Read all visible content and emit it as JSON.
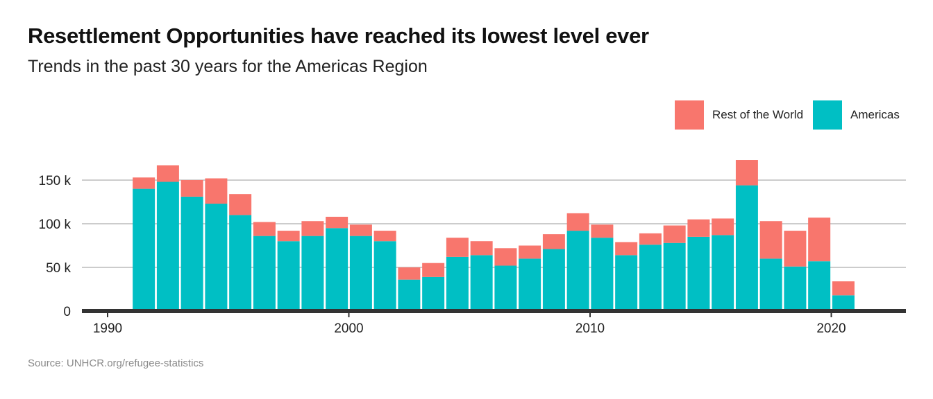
{
  "header": {
    "title": "Resettlement Opportunities have reached its lowest level ever",
    "subtitle": "Trends in the past 30 years for the Americas Region"
  },
  "footer": {
    "source": "Source: UNHCR.org/refugee-statistics"
  },
  "colors": {
    "rest_of_world": "#f8766d",
    "americas": "#00bfc4",
    "grid": "#cccccc",
    "axis": "#333333"
  },
  "chart_data": {
    "type": "bar",
    "stacked": true,
    "x": [
      1991,
      1992,
      1993,
      1994,
      1995,
      1996,
      1997,
      1998,
      1999,
      2000,
      2001,
      2002,
      2003,
      2004,
      2005,
      2006,
      2007,
      2008,
      2009,
      2010,
      2011,
      2012,
      2013,
      2014,
      2015,
      2016,
      2017,
      2018,
      2019,
      2020
    ],
    "series": [
      {
        "name": "Americas",
        "color": "#00bfc4",
        "values": [
          140000,
          148000,
          131000,
          123000,
          110000,
          86000,
          80000,
          86000,
          95000,
          86000,
          80000,
          36000,
          39000,
          62000,
          64000,
          52000,
          60000,
          71000,
          92000,
          84000,
          64000,
          76000,
          78000,
          85000,
          87000,
          144000,
          60000,
          51000,
          57000,
          18000
        ]
      },
      {
        "name": "Rest of the World",
        "color": "#f8766d",
        "values": [
          13000,
          19000,
          19000,
          29000,
          24000,
          16000,
          12000,
          17000,
          13000,
          13000,
          12000,
          14000,
          16000,
          22000,
          16000,
          20000,
          15000,
          17000,
          20000,
          15000,
          15000,
          13000,
          20000,
          20000,
          19000,
          29000,
          43000,
          41000,
          50000,
          16000
        ]
      }
    ],
    "legend": [
      {
        "name": "Rest of the World",
        "color": "#f8766d"
      },
      {
        "name": "Americas",
        "color": "#00bfc4"
      }
    ],
    "legend_position": "top-right",
    "x_ticks": [
      "1990",
      "2000",
      "2010",
      "2020"
    ],
    "y_ticks": [
      "0",
      "50 k",
      "100 k",
      "150 k"
    ],
    "ylim": [
      0,
      175000
    ],
    "grid": true
  }
}
